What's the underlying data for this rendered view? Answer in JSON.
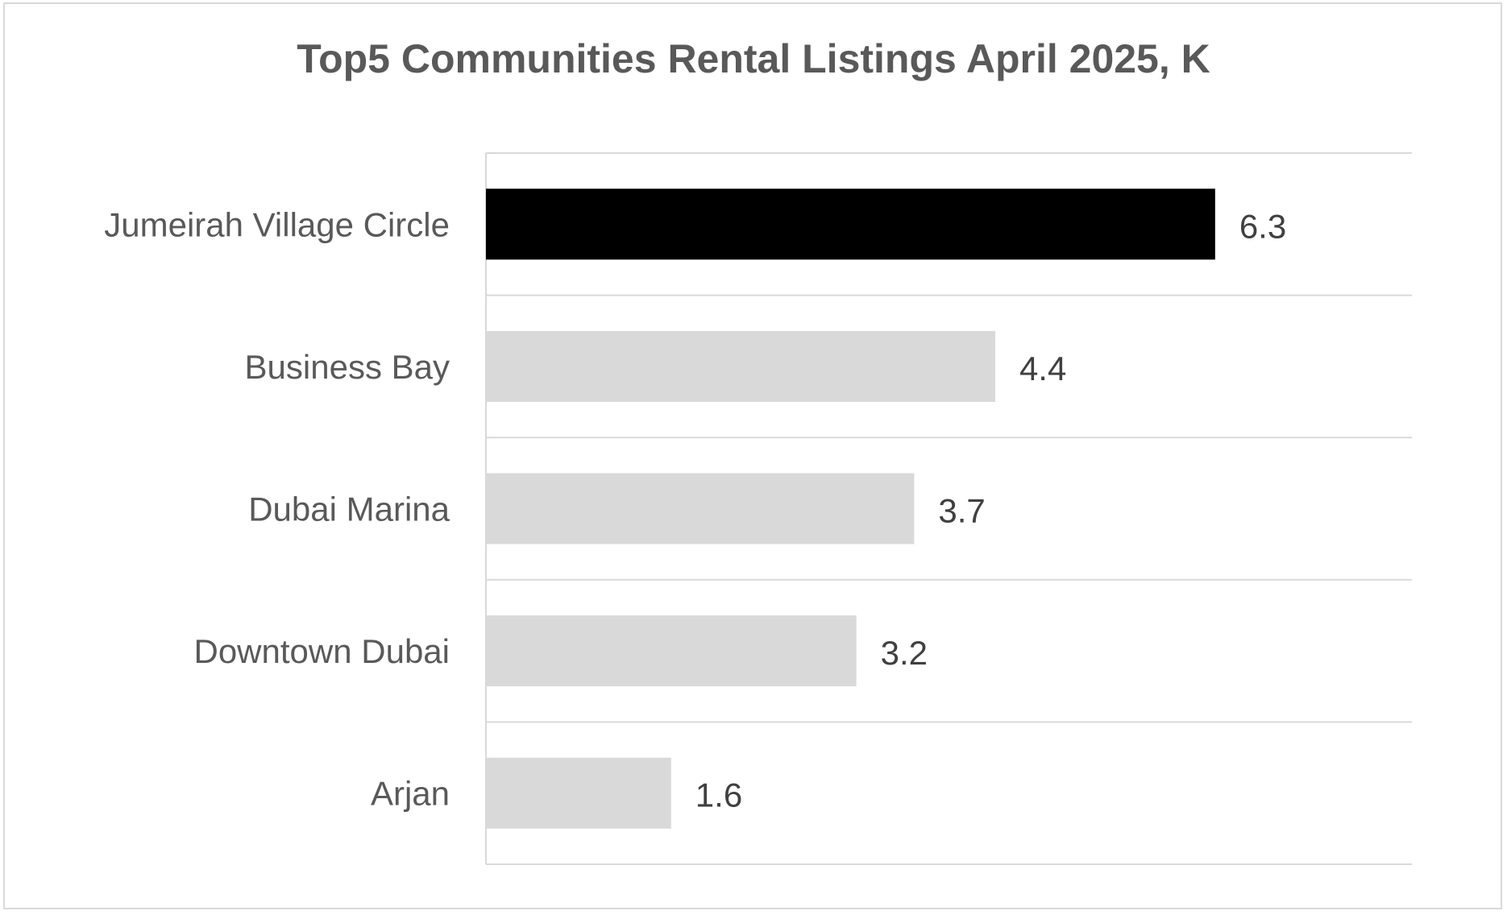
{
  "chart_data": {
    "type": "bar",
    "orientation": "horizontal",
    "title": "Top5 Communities Rental Listings April 2025, K",
    "categories": [
      "Jumeirah Village Circle",
      "Business Bay",
      "Dubai Marina",
      "Downtown Dubai",
      "Arjan"
    ],
    "values": [
      6.3,
      4.4,
      3.7,
      3.2,
      1.6
    ],
    "data_labels": [
      "6.3",
      "4.4",
      "3.7",
      "3.2",
      "1.6"
    ],
    "xlim": [
      0,
      8
    ],
    "xlabel": "",
    "ylabel": "",
    "grid": "horizontal separators between categories",
    "legend": "none",
    "colors": {
      "highlight": "#000000",
      "default": "#d9d9d9",
      "title": "#595959",
      "labels": "#595959",
      "data_labels": "#404040",
      "gridline": "#d9d9d9"
    }
  }
}
